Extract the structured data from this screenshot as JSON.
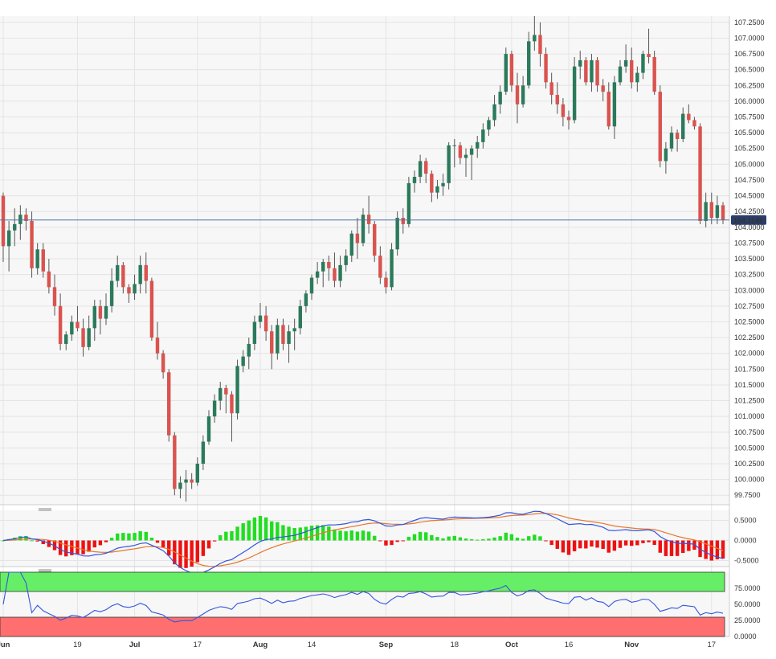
{
  "chart_data": [
    {
      "type": "candlestick",
      "title": "",
      "price_axis": {
        "range": [
          99.6,
          107.35
        ],
        "ticks": [
          "107.2500",
          "107.0000",
          "106.7500",
          "106.5000",
          "106.2500",
          "106.0000",
          "105.7500",
          "105.5000",
          "105.2500",
          "105.0000",
          "104.7500",
          "104.5000",
          "104.2500",
          "104.0000",
          "103.7500",
          "103.5000",
          "103.2500",
          "103.0000",
          "102.7500",
          "102.5000",
          "102.2500",
          "102.0000",
          "101.7500",
          "101.5000",
          "101.2500",
          "101.0000",
          "100.7500",
          "100.5000",
          "100.2500",
          "100.0000",
          "99.7500"
        ],
        "current_price": 104.1149,
        "current_price_label": "104.1149"
      },
      "x_axis": {
        "labels": [
          {
            "text": "Jun",
            "bold": true
          },
          {
            "text": "19",
            "bold": false
          },
          {
            "text": "Jul",
            "bold": true
          },
          {
            "text": "17",
            "bold": false
          },
          {
            "text": "Aug",
            "bold": true
          },
          {
            "text": "14",
            "bold": false
          },
          {
            "text": "Sep",
            "bold": true
          },
          {
            "text": "18",
            "bold": false
          },
          {
            "text": "Oct",
            "bold": true
          },
          {
            "text": "16",
            "bold": false
          },
          {
            "text": "Nov",
            "bold": true
          },
          {
            "text": "17",
            "bold": false
          }
        ],
        "label_bar_index": [
          0,
          13,
          23,
          34,
          45,
          54,
          67,
          79,
          89,
          99,
          110,
          124
        ]
      },
      "candles": [
        [
          104.5,
          104.55,
          103.45,
          103.7
        ],
        [
          103.7,
          104.1,
          103.3,
          103.95
        ],
        [
          103.95,
          104.3,
          103.7,
          104.05
        ],
        [
          104.05,
          104.35,
          103.8,
          104.2
        ],
        [
          104.2,
          104.3,
          103.95,
          104.1
        ],
        [
          104.1,
          104.25,
          103.2,
          103.35
        ],
        [
          103.35,
          103.75,
          103.25,
          103.65
        ],
        [
          103.65,
          103.75,
          103.2,
          103.3
        ],
        [
          103.3,
          103.5,
          102.95,
          103.05
        ],
        [
          103.05,
          103.25,
          102.6,
          102.75
        ],
        [
          102.75,
          102.95,
          102.05,
          102.15
        ],
        [
          102.15,
          102.35,
          102.05,
          102.3
        ],
        [
          102.3,
          102.6,
          102.2,
          102.5
        ],
        [
          102.5,
          102.75,
          102.35,
          102.4
        ],
        [
          102.4,
          102.55,
          101.95,
          102.1
        ],
        [
          102.1,
          102.6,
          102.05,
          102.4
        ],
        [
          102.4,
          102.85,
          102.2,
          102.75
        ],
        [
          102.75,
          102.85,
          102.3,
          102.55
        ],
        [
          102.55,
          102.95,
          102.45,
          102.75
        ],
        [
          102.75,
          103.35,
          102.65,
          103.15
        ],
        [
          103.15,
          103.55,
          103.05,
          103.4
        ],
        [
          103.4,
          103.45,
          102.95,
          103.05
        ],
        [
          103.05,
          103.1,
          102.8,
          102.95
        ],
        [
          102.95,
          103.25,
          102.85,
          103.1
        ],
        [
          103.1,
          103.55,
          102.95,
          103.4
        ],
        [
          103.4,
          103.6,
          102.95,
          103.15
        ],
        [
          103.15,
          103.2,
          102.2,
          102.25
        ],
        [
          102.25,
          102.5,
          101.9,
          102.0
        ],
        [
          102.0,
          102.05,
          101.6,
          101.7
        ],
        [
          101.7,
          101.75,
          100.6,
          100.7
        ],
        [
          100.7,
          100.75,
          99.75,
          99.85
        ],
        [
          99.85,
          100.05,
          99.7,
          99.95
        ],
        [
          99.95,
          100.15,
          99.65,
          100.0
        ],
        [
          100.0,
          100.1,
          99.85,
          99.95
        ],
        [
          99.95,
          100.35,
          99.9,
          100.25
        ],
        [
          100.25,
          100.7,
          100.15,
          100.6
        ],
        [
          100.6,
          101.1,
          100.55,
          101.0
        ],
        [
          101.0,
          101.35,
          100.9,
          101.25
        ],
        [
          101.25,
          101.55,
          101.1,
          101.45
        ],
        [
          101.45,
          101.5,
          101.05,
          101.35
        ],
        [
          101.35,
          101.4,
          100.6,
          101.05
        ],
        [
          101.05,
          101.9,
          100.95,
          101.8
        ],
        [
          101.8,
          102.05,
          101.7,
          101.95
        ],
        [
          101.95,
          102.25,
          101.75,
          102.15
        ],
        [
          102.15,
          102.6,
          102.05,
          102.5
        ],
        [
          102.5,
          102.8,
          102.4,
          102.6
        ],
        [
          102.6,
          102.75,
          102.2,
          102.35
        ],
        [
          102.35,
          102.45,
          101.75,
          102.0
        ],
        [
          102.0,
          102.55,
          101.9,
          102.45
        ],
        [
          102.45,
          102.55,
          102.05,
          102.15
        ],
        [
          102.15,
          102.45,
          101.85,
          102.35
        ],
        [
          102.35,
          102.55,
          102.05,
          102.4
        ],
        [
          102.4,
          102.85,
          102.3,
          102.75
        ],
        [
          102.75,
          103.0,
          102.65,
          102.95
        ],
        [
          102.95,
          103.25,
          102.85,
          103.2
        ],
        [
          103.2,
          103.45,
          103.1,
          103.3
        ],
        [
          103.3,
          103.5,
          103.05,
          103.45
        ],
        [
          103.45,
          103.55,
          103.15,
          103.35
        ],
        [
          103.35,
          103.6,
          103.05,
          103.15
        ],
        [
          103.15,
          103.55,
          103.05,
          103.4
        ],
        [
          103.4,
          103.65,
          103.3,
          103.55
        ],
        [
          103.55,
          103.95,
          103.45,
          103.9
        ],
        [
          103.9,
          104.15,
          103.5,
          103.75
        ],
        [
          103.75,
          104.3,
          103.7,
          104.2
        ],
        [
          104.2,
          104.5,
          103.9,
          104.05
        ],
        [
          104.05,
          104.1,
          103.45,
          103.55
        ],
        [
          103.55,
          103.7,
          103.1,
          103.2
        ],
        [
          103.2,
          103.3,
          102.95,
          103.05
        ],
        [
          103.05,
          103.75,
          103.0,
          103.65
        ],
        [
          103.65,
          104.25,
          103.55,
          104.15
        ],
        [
          104.15,
          104.3,
          103.9,
          104.05
        ],
        [
          104.05,
          104.8,
          104.0,
          104.7
        ],
        [
          104.7,
          104.9,
          104.55,
          104.8
        ],
        [
          104.8,
          105.15,
          104.7,
          105.05
        ],
        [
          105.05,
          105.1,
          104.7,
          104.85
        ],
        [
          104.85,
          104.9,
          104.4,
          104.55
        ],
        [
          104.55,
          104.75,
          104.45,
          104.65
        ],
        [
          104.65,
          104.85,
          104.5,
          104.7
        ],
        [
          104.7,
          105.35,
          104.6,
          105.3
        ],
        [
          105.3,
          105.4,
          104.95,
          105.3
        ],
        [
          105.3,
          105.35,
          105.0,
          105.1
        ],
        [
          105.1,
          105.25,
          104.8,
          105.15
        ],
        [
          105.15,
          105.3,
          104.75,
          105.25
        ],
        [
          105.25,
          105.45,
          105.1,
          105.35
        ],
        [
          105.35,
          105.65,
          105.25,
          105.55
        ],
        [
          105.55,
          105.75,
          105.45,
          105.7
        ],
        [
          105.7,
          106.1,
          105.6,
          105.95
        ],
        [
          105.95,
          106.25,
          105.8,
          106.15
        ],
        [
          106.15,
          106.85,
          106.1,
          106.75
        ],
        [
          106.75,
          106.8,
          106.15,
          106.25
        ],
        [
          106.25,
          106.45,
          105.65,
          105.95
        ],
        [
          105.95,
          106.4,
          105.9,
          106.25
        ],
        [
          106.25,
          107.1,
          106.2,
          106.95
        ],
        [
          106.95,
          107.35,
          106.8,
          107.05
        ],
        [
          107.05,
          107.25,
          106.55,
          106.75
        ],
        [
          106.75,
          106.85,
          106.2,
          106.3
        ],
        [
          106.3,
          106.45,
          105.95,
          106.1
        ],
        [
          106.1,
          106.3,
          105.8,
          105.95
        ],
        [
          105.95,
          106.05,
          105.6,
          105.75
        ],
        [
          105.75,
          105.85,
          105.55,
          105.7
        ],
        [
          105.7,
          106.7,
          105.65,
          106.55
        ],
        [
          106.55,
          106.8,
          106.35,
          106.65
        ],
        [
          106.65,
          106.7,
          106.25,
          106.3
        ],
        [
          106.3,
          106.75,
          106.15,
          106.65
        ],
        [
          106.65,
          106.7,
          106.15,
          106.25
        ],
        [
          106.25,
          106.35,
          106.0,
          106.15
        ],
        [
          106.15,
          106.3,
          105.55,
          105.6
        ],
        [
          105.6,
          106.4,
          105.4,
          106.3
        ],
        [
          106.3,
          106.65,
          106.25,
          106.55
        ],
        [
          106.55,
          106.9,
          106.45,
          106.65
        ],
        [
          106.65,
          106.85,
          106.2,
          106.3
        ],
        [
          106.3,
          106.55,
          106.15,
          106.45
        ],
        [
          106.45,
          106.8,
          106.35,
          106.75
        ],
        [
          106.75,
          107.15,
          106.6,
          106.7
        ],
        [
          106.7,
          106.8,
          106.1,
          106.15
        ],
        [
          106.15,
          106.25,
          104.95,
          105.05
        ],
        [
          105.05,
          105.35,
          104.85,
          105.25
        ],
        [
          105.25,
          105.6,
          105.2,
          105.5
        ],
        [
          105.5,
          105.55,
          105.2,
          105.4
        ],
        [
          105.4,
          105.9,
          105.35,
          105.8
        ],
        [
          105.8,
          105.95,
          105.65,
          105.7
        ],
        [
          105.7,
          105.75,
          105.55,
          105.6
        ],
        [
          105.6,
          105.65,
          104.05,
          104.1
        ],
        [
          104.1,
          104.55,
          104.0,
          104.4
        ],
        [
          104.4,
          104.55,
          104.05,
          104.15
        ],
        [
          104.15,
          104.5,
          104.05,
          104.35
        ],
        [
          104.35,
          104.4,
          104.05,
          104.12
        ]
      ],
      "colors": {
        "up": "#2b7a5b",
        "down": "#d9534f",
        "wick": "#555555",
        "price_line": "#4a6fa5",
        "price_label_bg": "#2b3e6b"
      }
    },
    {
      "type": "macd",
      "range": [
        -0.65,
        0.75
      ],
      "ticks": [
        "0.5000",
        "0.0000",
        "-0.5000"
      ],
      "colors": {
        "macd": "#3355dd",
        "signal": "#e8772e",
        "hist_up": "#22dd22",
        "hist_down": "#ee1111"
      }
    },
    {
      "type": "rsi",
      "range": [
        0,
        100
      ],
      "ticks": [
        "75.0000",
        "50.0000",
        "25.0000",
        "0.0000"
      ],
      "overbought": 70,
      "oversold": 30,
      "colors": {
        "line": "#3355dd",
        "overbought_zone": "#66ee66",
        "oversold_zone": "#ff6f6f"
      }
    }
  ]
}
